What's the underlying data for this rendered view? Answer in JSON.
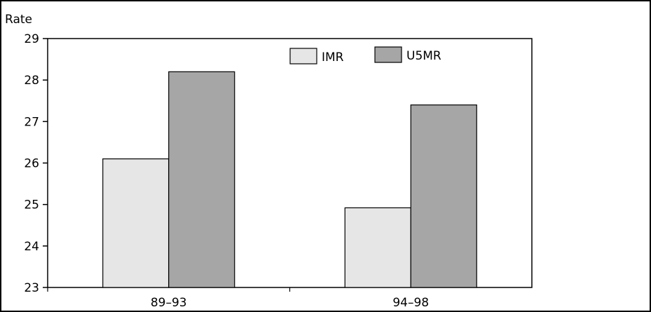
{
  "chart_data": {
    "type": "bar",
    "title": "",
    "ylabel": "Rate",
    "xlabel": "",
    "categories": [
      "89–93",
      "94–98"
    ],
    "series": [
      {
        "name": "IMR",
        "values": [
          26.1,
          24.92
        ],
        "color": "#e6e6e6"
      },
      {
        "name": "U5MR",
        "values": [
          28.2,
          27.4
        ],
        "color": "#a6a6a6"
      }
    ],
    "ylim": [
      23,
      29
    ],
    "yticks": [
      "23",
      "24",
      "25",
      "26",
      "27",
      "28",
      "29"
    ],
    "grid": false,
    "legend": "top-center"
  }
}
